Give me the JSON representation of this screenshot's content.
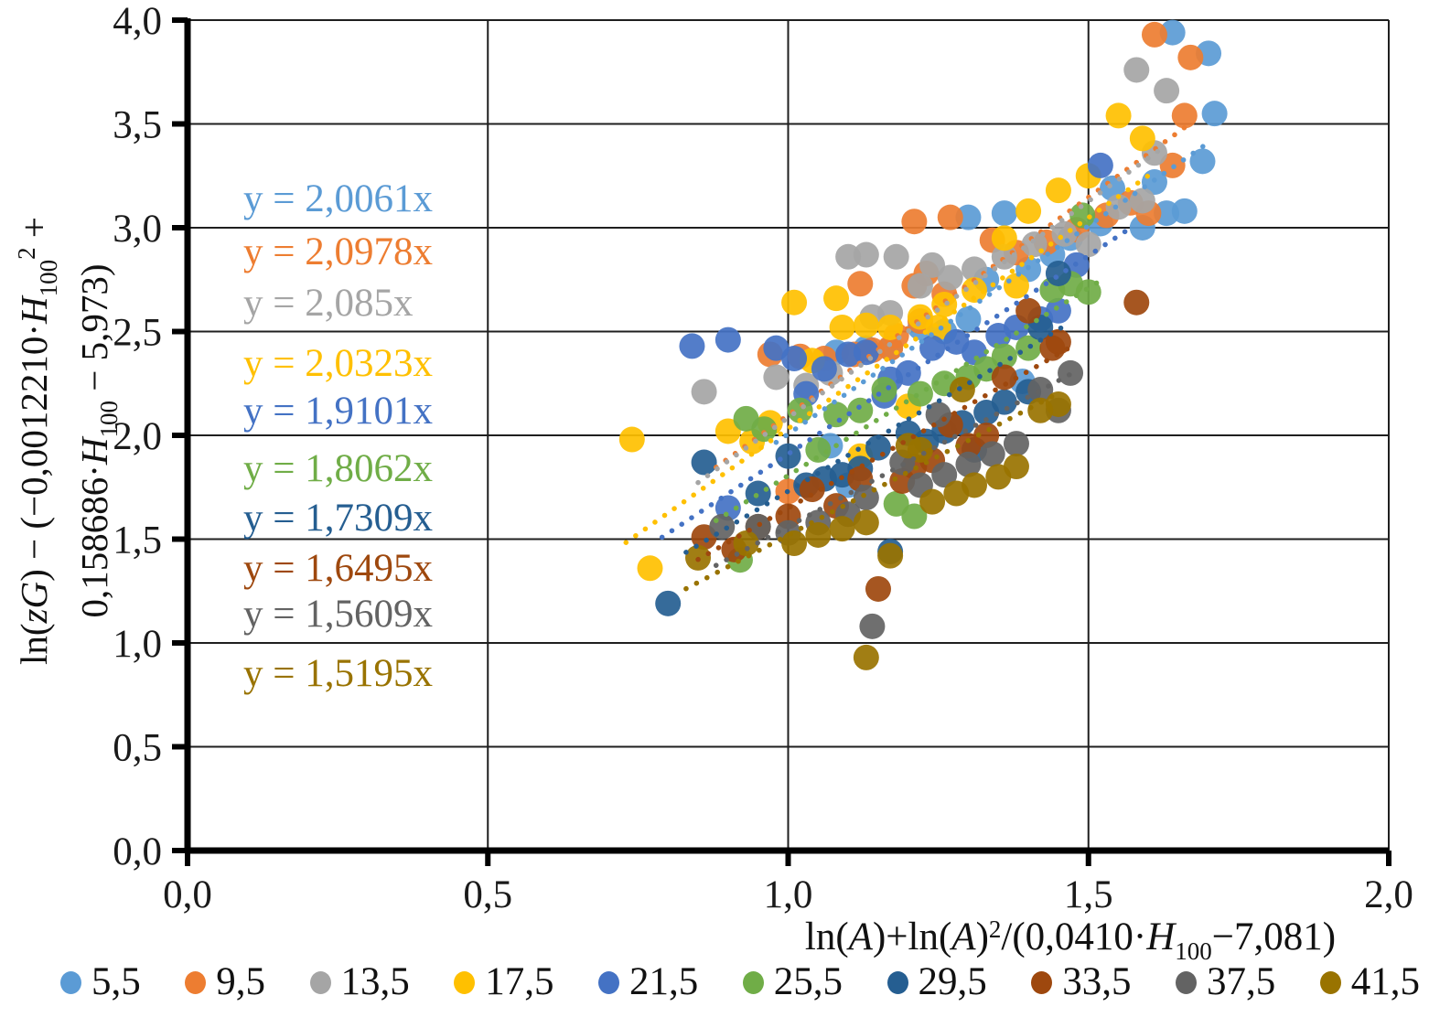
{
  "chart_data": {
    "type": "scatter",
    "title": "",
    "xlabel": "ln(A)+ln(A)2/(0,0410·H100−7,081)",
    "ylabel": "ln(zG) − (−0,0012210·H100 2 + 0,158686·H100 − 5,973)",
    "xlabel_parts": [
      {
        "t": "ln("
      },
      {
        "t": "A",
        "i": true
      },
      {
        "t": ")+ln("
      },
      {
        "t": "A",
        "i": true
      },
      {
        "t": ")"
      },
      {
        "t": "2",
        "sup": true
      },
      {
        "t": "/(0,0410·"
      },
      {
        "t": "H",
        "i": true
      },
      {
        "t": "100",
        "sub": true
      },
      {
        "t": "−7,081)"
      }
    ],
    "ylabel_line1_parts": [
      {
        "t": "ln("
      },
      {
        "t": "zG",
        "i": true
      },
      {
        "t": ") − (−0,0012210·"
      },
      {
        "t": "H",
        "i": true
      },
      {
        "t": "100",
        "sub": true
      },
      {
        "t": "2",
        "sup": true
      },
      {
        "t": " +"
      }
    ],
    "ylabel_line2_parts": [
      {
        "t": "0,158686·"
      },
      {
        "t": "H",
        "i": true
      },
      {
        "t": "100",
        "sub": true
      },
      {
        "t": " − 5,973)"
      }
    ],
    "xlim": [
      0,
      2
    ],
    "ylim": [
      0,
      4
    ],
    "grid": true,
    "legend_position": "bottom",
    "x_ticks": [
      {
        "v": 0,
        "label": "0,0"
      },
      {
        "v": 0.5,
        "label": "0,5"
      },
      {
        "v": 1,
        "label": "1,0"
      },
      {
        "v": 1.5,
        "label": "1,5"
      },
      {
        "v": 2,
        "label": "2,0"
      }
    ],
    "y_ticks": [
      {
        "v": 0,
        "label": "0,0"
      },
      {
        "v": 0.5,
        "label": "0,5"
      },
      {
        "v": 1,
        "label": "1,0"
      },
      {
        "v": 1.5,
        "label": "1,5"
      },
      {
        "v": 2,
        "label": "2,0"
      },
      {
        "v": 2.5,
        "label": "2,5"
      },
      {
        "v": 3,
        "label": "3,0"
      },
      {
        "v": 3.5,
        "label": "3,5"
      },
      {
        "v": 4,
        "label": "4,0"
      }
    ],
    "equation_x": 0.093,
    "series": [
      {
        "name": "5,5",
        "color": "#5B9BD5",
        "equation": "y = 2,0061x",
        "slope": 2.0061,
        "trend_range": [
          0.98,
          1.7
        ],
        "eq_y": 3.137,
        "points": [
          [
            1.64,
            3.94
          ],
          [
            1.7,
            3.84
          ],
          [
            1.71,
            3.55
          ],
          [
            1.69,
            3.32
          ],
          [
            1.61,
            3.22
          ],
          [
            1.54,
            3.19
          ],
          [
            1.63,
            3.07
          ],
          [
            1.66,
            3.08
          ],
          [
            1.59,
            3.0
          ],
          [
            1.52,
            3.02
          ],
          [
            1.47,
            2.95
          ],
          [
            1.44,
            2.87
          ],
          [
            1.4,
            2.8
          ],
          [
            1.36,
            3.07
          ],
          [
            1.3,
            3.05
          ],
          [
            1.33,
            2.75
          ],
          [
            1.39,
            2.26
          ],
          [
            1.3,
            2.56
          ],
          [
            1.26,
            2.5
          ],
          [
            1.22,
            2.52
          ],
          [
            1.17,
            2.42
          ],
          [
            1.13,
            2.42
          ],
          [
            1.08,
            2.4
          ],
          [
            1.1,
            1.76
          ],
          [
            1.07,
            1.95
          ]
        ]
      },
      {
        "name": "9,5",
        "color": "#ED7D31",
        "equation": "y = 2,0978x",
        "slope": 2.0978,
        "trend_range": [
          0.88,
          1.66
        ],
        "eq_y": 2.881,
        "points": [
          [
            1.61,
            3.93
          ],
          [
            1.67,
            3.82
          ],
          [
            1.66,
            3.54
          ],
          [
            1.64,
            3.3
          ],
          [
            1.6,
            3.07
          ],
          [
            1.57,
            3.12
          ],
          [
            1.53,
            3.06
          ],
          [
            1.48,
            2.99
          ],
          [
            1.43,
            2.93
          ],
          [
            1.38,
            2.88
          ],
          [
            1.34,
            2.94
          ],
          [
            1.27,
            3.05
          ],
          [
            1.21,
            3.03
          ],
          [
            1.26,
            2.68
          ],
          [
            1.23,
            2.78
          ],
          [
            1.22,
            2.55
          ],
          [
            1.18,
            2.48
          ],
          [
            1.17,
            2.42
          ],
          [
            1.14,
            2.41
          ],
          [
            1.11,
            2.39
          ],
          [
            1.21,
            2.72
          ],
          [
            1.12,
            2.73
          ],
          [
            1.06,
            2.37
          ],
          [
            1.02,
            2.38
          ],
          [
            0.97,
            2.39
          ],
          [
            1.0,
            1.73
          ]
        ]
      },
      {
        "name": "13,5",
        "color": "#A5A5A5",
        "equation": "y = 2,085x",
        "slope": 2.085,
        "trend_range": [
          0.85,
          1.62
        ],
        "eq_y": 2.634,
        "points": [
          [
            1.58,
            3.76
          ],
          [
            1.63,
            3.66
          ],
          [
            1.61,
            3.36
          ],
          [
            1.59,
            3.13
          ],
          [
            1.55,
            3.1
          ],
          [
            1.5,
            2.92
          ],
          [
            1.46,
            2.97
          ],
          [
            1.41,
            2.92
          ],
          [
            1.36,
            2.86
          ],
          [
            1.31,
            2.8
          ],
          [
            1.27,
            2.76
          ],
          [
            1.24,
            2.82
          ],
          [
            1.22,
            2.72
          ],
          [
            1.1,
            2.86
          ],
          [
            1.13,
            2.87
          ],
          [
            1.18,
            2.86
          ],
          [
            1.14,
            2.57
          ],
          [
            1.17,
            2.59
          ],
          [
            1.07,
            2.3
          ],
          [
            1.03,
            2.24
          ],
          [
            0.98,
            2.28
          ],
          [
            0.86,
            2.21
          ]
        ]
      },
      {
        "name": "17,5",
        "color": "#FFC000",
        "equation": "y = 2,0323x",
        "slope": 2.0323,
        "trend_range": [
          0.73,
          1.6
        ],
        "eq_y": 2.344,
        "points": [
          [
            1.55,
            3.54
          ],
          [
            1.59,
            3.43
          ],
          [
            1.5,
            3.25
          ],
          [
            1.45,
            3.18
          ],
          [
            1.4,
            3.08
          ],
          [
            1.36,
            2.95
          ],
          [
            1.38,
            2.72
          ],
          [
            1.31,
            2.7
          ],
          [
            1.26,
            2.63
          ],
          [
            1.25,
            2.52
          ],
          [
            1.22,
            2.57
          ],
          [
            1.17,
            2.52
          ],
          [
            1.13,
            2.53
          ],
          [
            1.09,
            2.52
          ],
          [
            1.04,
            2.36
          ],
          [
            1.08,
            2.66
          ],
          [
            1.01,
            2.64
          ],
          [
            0.97,
            2.06
          ],
          [
            0.94,
            1.97
          ],
          [
            0.9,
            2.02
          ],
          [
            0.74,
            1.98
          ],
          [
            0.77,
            1.36
          ],
          [
            1.12,
            1.9
          ],
          [
            1.2,
            2.14
          ]
        ]
      },
      {
        "name": "21,5",
        "color": "#4472C4",
        "equation": "y = 1,9101x",
        "slope": 1.9101,
        "trend_range": [
          0.79,
          1.57
        ],
        "eq_y": 2.115,
        "points": [
          [
            1.52,
            3.3
          ],
          [
            1.48,
            2.82
          ],
          [
            1.45,
            2.6
          ],
          [
            1.42,
            2.56
          ],
          [
            1.38,
            2.52
          ],
          [
            1.35,
            2.48
          ],
          [
            1.31,
            2.4
          ],
          [
            1.28,
            2.45
          ],
          [
            1.24,
            2.42
          ],
          [
            1.2,
            2.3
          ],
          [
            1.17,
            2.27
          ],
          [
            1.16,
            2.19
          ],
          [
            1.13,
            2.4
          ],
          [
            1.1,
            2.39
          ],
          [
            1.06,
            2.32
          ],
          [
            1.03,
            2.2
          ],
          [
            1.01,
            2.37
          ],
          [
            0.98,
            2.42
          ],
          [
            0.9,
            2.46
          ],
          [
            0.84,
            2.43
          ],
          [
            0.9,
            1.65
          ]
        ]
      },
      {
        "name": "25,5",
        "color": "#70AD47",
        "equation": "y = 1,8062x",
        "slope": 1.8062,
        "trend_range": [
          0.88,
          1.52
        ],
        "eq_y": 1.837,
        "points": [
          [
            1.5,
            2.69
          ],
          [
            1.49,
            3.06
          ],
          [
            1.47,
            2.73
          ],
          [
            1.44,
            2.7
          ],
          [
            1.4,
            2.42
          ],
          [
            1.36,
            2.38
          ],
          [
            1.33,
            2.32
          ],
          [
            1.3,
            2.28
          ],
          [
            1.26,
            2.25
          ],
          [
            1.22,
            2.2
          ],
          [
            1.16,
            2.22
          ],
          [
            1.12,
            2.12
          ],
          [
            1.08,
            2.1
          ],
          [
            1.05,
            1.93
          ],
          [
            1.02,
            2.12
          ],
          [
            0.96,
            2.03
          ],
          [
            0.93,
            2.08
          ],
          [
            0.92,
            1.4
          ],
          [
            1.18,
            1.67
          ],
          [
            1.21,
            1.61
          ]
        ]
      },
      {
        "name": "29,5",
        "color": "#255E91",
        "equation": "y = 1,7309x",
        "slope": 1.7309,
        "trend_range": [
          0.83,
          1.46
        ],
        "eq_y": 1.599,
        "points": [
          [
            1.45,
            2.78
          ],
          [
            1.42,
            2.52
          ],
          [
            1.4,
            2.21
          ],
          [
            1.36,
            2.16
          ],
          [
            1.33,
            2.11
          ],
          [
            1.29,
            2.06
          ],
          [
            1.26,
            2.02
          ],
          [
            1.23,
            1.97
          ],
          [
            1.2,
            2.01
          ],
          [
            1.15,
            1.94
          ],
          [
            1.12,
            1.84
          ],
          [
            1.09,
            1.81
          ],
          [
            1.06,
            1.79
          ],
          [
            1.03,
            1.76
          ],
          [
            1.0,
            1.9
          ],
          [
            0.95,
            1.72
          ],
          [
            0.86,
            1.87
          ],
          [
            0.8,
            1.19
          ],
          [
            1.17,
            1.44
          ],
          [
            1.31,
            1.93
          ]
        ]
      },
      {
        "name": "33,5",
        "color": "#9E480E",
        "equation": "y = 1,6495x",
        "slope": 1.6495,
        "trend_range": [
          0.85,
          1.47
        ],
        "eq_y": 1.357,
        "points": [
          [
            1.58,
            2.64
          ],
          [
            1.45,
            2.45
          ],
          [
            1.44,
            2.42
          ],
          [
            1.4,
            2.6
          ],
          [
            1.36,
            2.28
          ],
          [
            1.33,
            2.0
          ],
          [
            1.3,
            1.95
          ],
          [
            1.27,
            2.05
          ],
          [
            1.24,
            1.88
          ],
          [
            1.21,
            1.85
          ],
          [
            1.19,
            1.78
          ],
          [
            1.12,
            1.79
          ],
          [
            1.08,
            1.66
          ],
          [
            1.04,
            1.74
          ],
          [
            1.0,
            1.61
          ],
          [
            0.95,
            1.56
          ],
          [
            0.91,
            1.45
          ],
          [
            0.86,
            1.51
          ],
          [
            1.15,
            1.26
          ]
        ]
      },
      {
        "name": "37,5",
        "color": "#636363",
        "equation": "y = 1,5609x",
        "slope": 1.5609,
        "trend_range": [
          0.88,
          1.47
        ],
        "eq_y": 1.137,
        "points": [
          [
            1.47,
            2.3
          ],
          [
            1.45,
            2.12
          ],
          [
            1.42,
            2.22
          ],
          [
            1.38,
            1.96
          ],
          [
            1.34,
            1.91
          ],
          [
            1.3,
            1.86
          ],
          [
            1.26,
            1.81
          ],
          [
            1.25,
            2.1
          ],
          [
            1.22,
            1.76
          ],
          [
            1.19,
            1.87
          ],
          [
            1.13,
            1.7
          ],
          [
            1.1,
            1.62
          ],
          [
            1.05,
            1.58
          ],
          [
            1.0,
            1.53
          ],
          [
            0.95,
            1.56
          ],
          [
            0.89,
            1.56
          ],
          [
            1.14,
            1.08
          ]
        ]
      },
      {
        "name": "41,5",
        "color": "#997300",
        "equation": "y = 1,5195x",
        "slope": 1.5195,
        "trend_range": [
          0.83,
          1.44
        ],
        "eq_y": 0.85,
        "points": [
          [
            1.45,
            2.15
          ],
          [
            1.42,
            2.12
          ],
          [
            1.38,
            1.85
          ],
          [
            1.35,
            1.8
          ],
          [
            1.31,
            1.76
          ],
          [
            1.29,
            2.22
          ],
          [
            1.28,
            1.72
          ],
          [
            1.24,
            1.68
          ],
          [
            1.22,
            1.93
          ],
          [
            1.2,
            1.95
          ],
          [
            1.17,
            1.42
          ],
          [
            1.13,
            1.58
          ],
          [
            1.09,
            1.55
          ],
          [
            1.05,
            1.52
          ],
          [
            1.01,
            1.48
          ],
          [
            0.93,
            1.48
          ],
          [
            0.85,
            1.41
          ],
          [
            1.13,
            0.93
          ]
        ]
      }
    ]
  }
}
